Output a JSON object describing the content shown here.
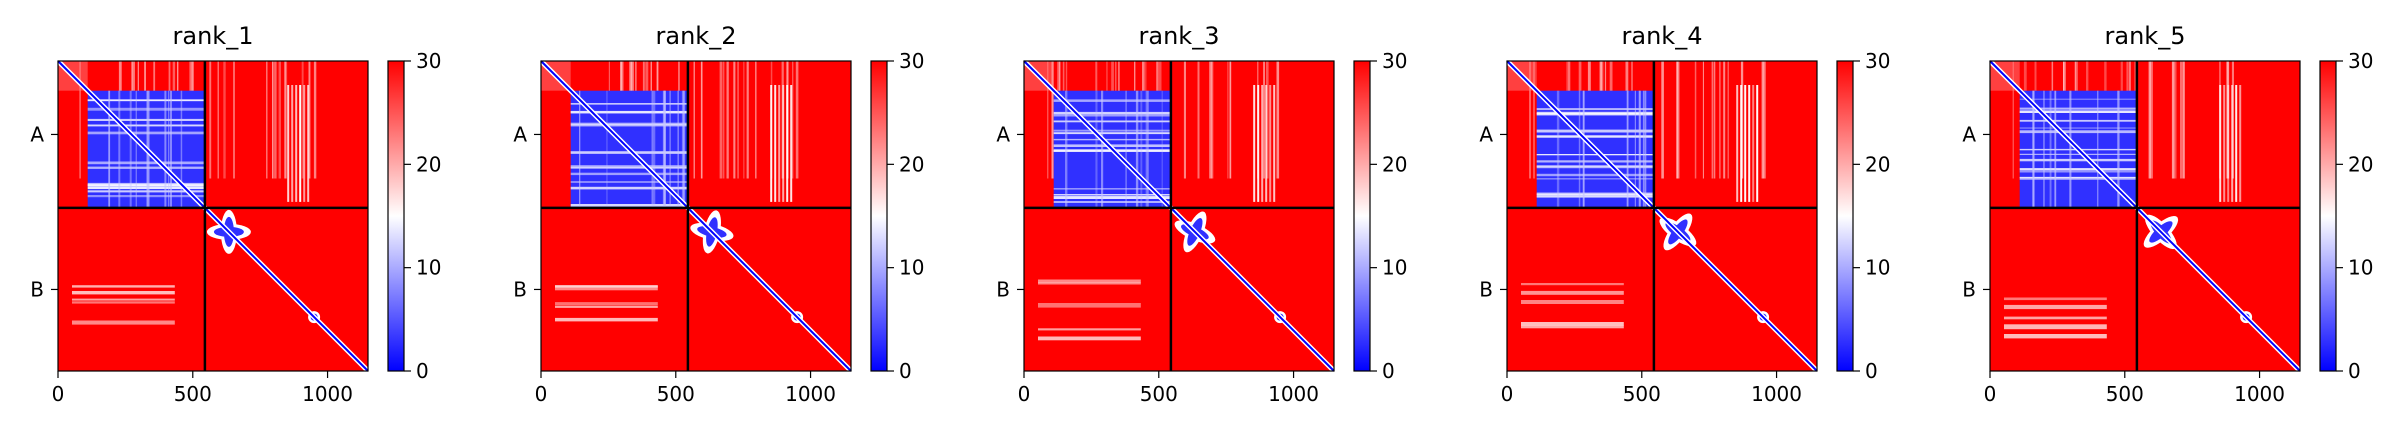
{
  "chart_data": {
    "type": "heatmap",
    "colormap": {
      "name": "bwr",
      "low": "#0000ff",
      "mid": "#ffffff",
      "high": "#ff0000"
    },
    "colorbar": {
      "min": 0,
      "max": 30,
      "ticks": [
        "0",
        "10",
        "20",
        "30"
      ]
    },
    "xlim": [
      0,
      1150
    ],
    "x_ticks": [
      0,
      500,
      1000
    ],
    "x_tick_labels": [
      "0",
      "500",
      "1000"
    ],
    "chain_boundary": 545,
    "chains": [
      "A",
      "B"
    ],
    "panels": [
      {
        "title": "rank_1"
      },
      {
        "title": "rank_2"
      },
      {
        "title": "rank_3"
      },
      {
        "title": "rank_4"
      },
      {
        "title": "rank_5"
      }
    ]
  }
}
